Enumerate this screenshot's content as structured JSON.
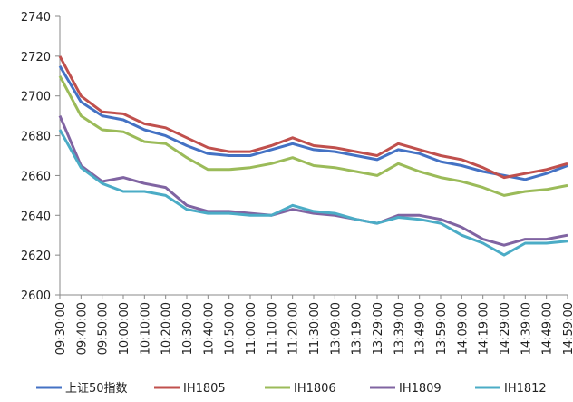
{
  "chart_data": {
    "type": "line",
    "title": "",
    "xlabel": "",
    "ylabel": "",
    "ylim": [
      2600,
      2740
    ],
    "yticks": [
      2600,
      2620,
      2640,
      2660,
      2680,
      2700,
      2720,
      2740
    ],
    "x": [
      "09:30:00",
      "09:40:00",
      "09:50:00",
      "10:00:00",
      "10:10:00",
      "10:20:00",
      "10:30:00",
      "10:40:00",
      "10:50:00",
      "11:00:00",
      "11:10:00",
      "11:20:00",
      "11:30:00",
      "13:09:00",
      "13:19:00",
      "13:29:00",
      "13:39:00",
      "13:49:00",
      "13:59:00",
      "14:09:00",
      "14:19:00",
      "14:29:00",
      "14:39:00",
      "14:49:00",
      "14:59:00"
    ],
    "grid": "none",
    "legend_position": "bottom",
    "series": [
      {
        "name": "上证50指数",
        "color": "#4472C4",
        "values": [
          2715,
          2697,
          2690,
          2688,
          2683,
          2680,
          2675,
          2671,
          2670,
          2670,
          2673,
          2676,
          2673,
          2672,
          2670,
          2668,
          2673,
          2671,
          2667,
          2665,
          2662,
          2660,
          2658,
          2661,
          2665
        ]
      },
      {
        "name": "IH1805",
        "color": "#C0504D",
        "values": [
          2720,
          2700,
          2692,
          2691,
          2686,
          2684,
          2679,
          2674,
          2672,
          2672,
          2675,
          2679,
          2675,
          2674,
          2672,
          2670,
          2676,
          2673,
          2670,
          2668,
          2664,
          2659,
          2661,
          2663,
          2666
        ]
      },
      {
        "name": "IH1806",
        "color": "#9BBB59",
        "values": [
          2710,
          2690,
          2683,
          2682,
          2677,
          2676,
          2669,
          2663,
          2663,
          2664,
          2666,
          2669,
          2665,
          2664,
          2662,
          2660,
          2666,
          2662,
          2659,
          2657,
          2654,
          2650,
          2652,
          2653,
          2655
        ]
      },
      {
        "name": "IH1809",
        "color": "#8064A2",
        "values": [
          2690,
          2665,
          2657,
          2659,
          2656,
          2654,
          2645,
          2642,
          2642,
          2641,
          2640,
          2643,
          2641,
          2640,
          2638,
          2636,
          2640,
          2640,
          2638,
          2634,
          2628,
          2625,
          2628,
          2628,
          2630
        ]
      },
      {
        "name": "IH1812",
        "color": "#4BACC6",
        "values": [
          2683,
          2664,
          2656,
          2652,
          2652,
          2650,
          2643,
          2641,
          2641,
          2640,
          2640,
          2645,
          2642,
          2641,
          2638,
          2636,
          2639,
          2638,
          2636,
          2630,
          2626,
          2620,
          2626,
          2626,
          2627
        ]
      }
    ]
  }
}
